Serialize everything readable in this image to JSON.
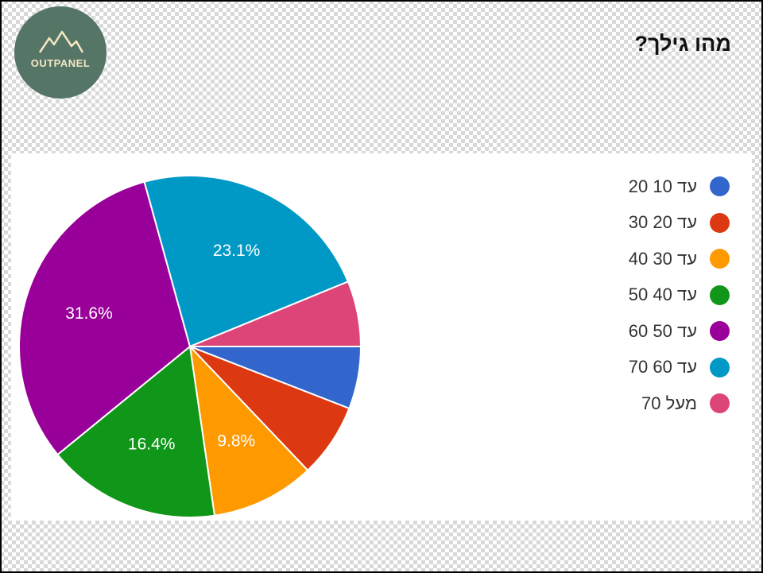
{
  "logo": {
    "text": "OUTPANEL",
    "name": "outpanel-logo"
  },
  "question": "מהו גילך?",
  "chart_data": {
    "type": "pie",
    "title": "",
    "slices": [
      {
        "label": "עד 10 20",
        "value": 5.9,
        "color": "#3366cc",
        "display_label": ""
      },
      {
        "label": "עד 20 30",
        "value": 7.0,
        "color": "#dc3912",
        "display_label": ""
      },
      {
        "label": "עד 30 40",
        "value": 9.8,
        "color": "#ff9900",
        "display_label": "9.8%"
      },
      {
        "label": "עד 40 50",
        "value": 16.4,
        "color": "#109618",
        "display_label": "16.4%"
      },
      {
        "label": "עד 50 60",
        "value": 31.6,
        "color": "#990099",
        "display_label": "31.6%"
      },
      {
        "label": "עד 60 70",
        "value": 23.1,
        "color": "#0099c6",
        "display_label": "23.1%"
      },
      {
        "label": "מעל 70",
        "value": 6.2,
        "color": "#dd4477",
        "display_label": ""
      }
    ],
    "legend_position": "right"
  }
}
